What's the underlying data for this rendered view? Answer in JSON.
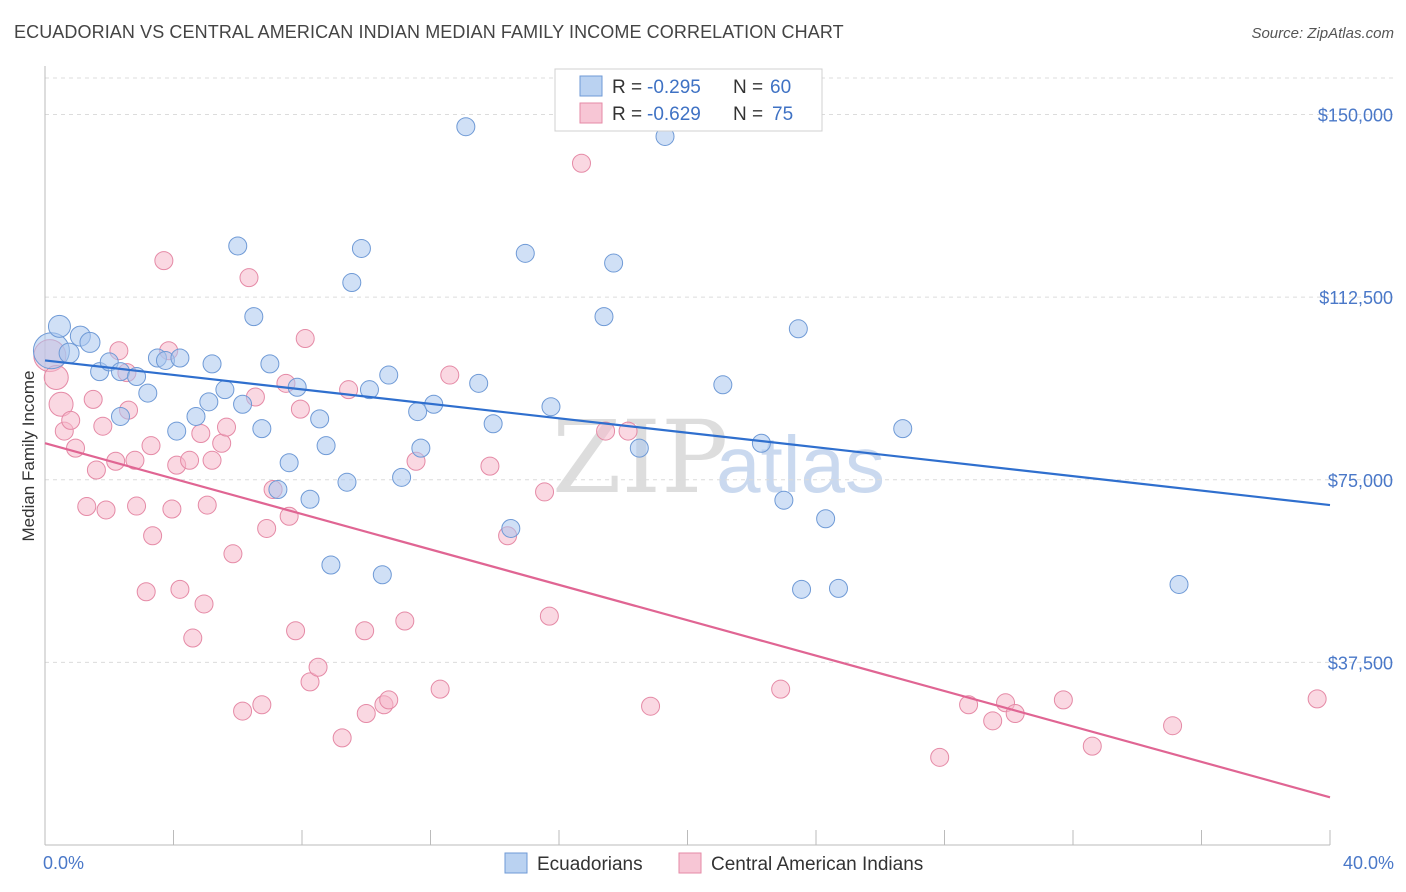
{
  "title": "ECUADORIAN VS CENTRAL AMERICAN INDIAN MEDIAN FAMILY INCOME CORRELATION CHART",
  "source": "Source: ZipAtlas.com",
  "watermark": {
    "part1": "ZIP",
    "part2": "atlas"
  },
  "colors": {
    "blue_fill": "#a9c7ee",
    "blue_stroke": "#6f9ad6",
    "blue_line": "#2f6fce",
    "pink_fill": "#f5b8cb",
    "pink_stroke": "#e58aa6",
    "pink_line": "#e06593",
    "grid": "#dcdcdc",
    "tick_text": "#4a78c8"
  },
  "legend": {
    "rows": [
      {
        "r_label": "R = ",
        "r_value": "-0.295",
        "n_label": "N = ",
        "n_value": "60"
      },
      {
        "r_label": "R = ",
        "r_value": "-0.629",
        "n_label": "N = ",
        "n_value": "75"
      }
    ]
  },
  "chart_data": {
    "type": "scatter",
    "title": "ECUADORIAN VS CENTRAL AMERICAN INDIAN MEDIAN FAMILY INCOME CORRELATION CHART",
    "xlabel": "",
    "ylabel": "Median Family Income",
    "xlim": [
      0,
      40
    ],
    "ylim": [
      0,
      157500
    ],
    "x_tick_labels": [
      "0.0%",
      "40.0%"
    ],
    "y_ticks": [
      {
        "value": 37500,
        "label": "$37,500"
      },
      {
        "value": 75000,
        "label": "$75,000"
      },
      {
        "value": 112500,
        "label": "$112,500"
      },
      {
        "value": 150000,
        "label": "$150,000"
      }
    ],
    "grid": "horizontal dashed",
    "series": [
      {
        "name": "Ecuadorians",
        "color": "blue",
        "r": -0.295,
        "n": 60,
        "trend": {
          "x": [
            0,
            40
          ],
          "y": [
            99500,
            69800
          ]
        },
        "points": [
          [
            0.2,
            101500,
            18
          ],
          [
            0.45,
            106500,
            11
          ],
          [
            0.75,
            101000,
            10
          ],
          [
            1.1,
            104500,
            10
          ],
          [
            1.4,
            103200,
            10
          ],
          [
            1.7,
            97200,
            9
          ],
          [
            2.0,
            99200,
            9
          ],
          [
            2.35,
            97200,
            9
          ],
          [
            2.85,
            96200,
            9
          ],
          [
            3.2,
            92800,
            9
          ],
          [
            2.35,
            88000,
            9
          ],
          [
            3.5,
            100000,
            9
          ],
          [
            3.75,
            99500,
            9
          ],
          [
            4.2,
            100000,
            9
          ],
          [
            4.1,
            85000,
            9
          ],
          [
            4.7,
            88000,
            9
          ],
          [
            5.1,
            91000,
            9
          ],
          [
            5.2,
            98800,
            9
          ],
          [
            5.6,
            93500,
            9
          ],
          [
            6.0,
            123000,
            9
          ],
          [
            6.15,
            90500,
            9
          ],
          [
            6.5,
            108500,
            9
          ],
          [
            6.75,
            85500,
            9
          ],
          [
            7.0,
            98800,
            9
          ],
          [
            7.25,
            73000,
            9
          ],
          [
            7.6,
            78500,
            9
          ],
          [
            7.85,
            94000,
            9
          ],
          [
            8.25,
            71000,
            9
          ],
          [
            8.55,
            87500,
            9
          ],
          [
            8.75,
            82000,
            9
          ],
          [
            8.9,
            57500,
            9
          ],
          [
            9.4,
            74500,
            9
          ],
          [
            9.55,
            115500,
            9
          ],
          [
            9.85,
            122500,
            9
          ],
          [
            10.1,
            93500,
            9
          ],
          [
            10.5,
            55500,
            9
          ],
          [
            10.7,
            96500,
            9
          ],
          [
            11.1,
            75500,
            9
          ],
          [
            11.6,
            89000,
            9
          ],
          [
            12.1,
            90500,
            9
          ],
          [
            13.1,
            147500,
            9
          ],
          [
            13.5,
            94800,
            9
          ],
          [
            13.95,
            86500,
            9
          ],
          [
            14.5,
            65000,
            9
          ],
          [
            14.95,
            121500,
            9
          ],
          [
            15.75,
            90000,
            9
          ],
          [
            17.4,
            108500,
            9
          ],
          [
            17.7,
            119500,
            9
          ],
          [
            18.5,
            81500,
            9
          ],
          [
            11.7,
            81500,
            9
          ],
          [
            21.1,
            94500,
            9
          ],
          [
            22.3,
            82500,
            9
          ],
          [
            23.0,
            70800,
            9
          ],
          [
            23.45,
            106000,
            9
          ],
          [
            23.55,
            52500,
            9
          ],
          [
            24.3,
            67000,
            9
          ],
          [
            24.7,
            52700,
            9
          ],
          [
            26.7,
            85500,
            9
          ],
          [
            35.3,
            53500,
            9
          ],
          [
            19.3,
            145500,
            9
          ]
        ]
      },
      {
        "name": "Central American Indians",
        "color": "pink",
        "r": -0.629,
        "n": 75,
        "trend": {
          "x": [
            0,
            40
          ],
          "y": [
            82500,
            9800
          ]
        },
        "points": [
          [
            0.15,
            100500,
            16
          ],
          [
            0.35,
            96000,
            12
          ],
          [
            0.5,
            90500,
            12
          ],
          [
            0.6,
            85000,
            9
          ],
          [
            0.8,
            87200,
            9
          ],
          [
            0.95,
            81500,
            9
          ],
          [
            1.3,
            69500,
            9
          ],
          [
            1.5,
            91500,
            9
          ],
          [
            1.6,
            77000,
            9
          ],
          [
            1.8,
            86000,
            9
          ],
          [
            1.9,
            68800,
            9
          ],
          [
            2.2,
            78800,
            9
          ],
          [
            2.3,
            101500,
            9
          ],
          [
            2.55,
            97000,
            9
          ],
          [
            2.6,
            89300,
            9
          ],
          [
            2.8,
            79000,
            9
          ],
          [
            2.85,
            69600,
            9
          ],
          [
            3.15,
            52000,
            9
          ],
          [
            3.3,
            82000,
            9
          ],
          [
            3.35,
            63500,
            9
          ],
          [
            3.7,
            120000,
            9
          ],
          [
            3.85,
            101500,
            9
          ],
          [
            3.95,
            69000,
            9
          ],
          [
            4.1,
            78000,
            9
          ],
          [
            4.2,
            52500,
            9
          ],
          [
            4.5,
            79000,
            9
          ],
          [
            4.6,
            42500,
            9
          ],
          [
            4.85,
            84500,
            9
          ],
          [
            4.95,
            49500,
            9
          ],
          [
            5.05,
            69800,
            9
          ],
          [
            5.2,
            79000,
            9
          ],
          [
            5.5,
            82500,
            9
          ],
          [
            5.65,
            85800,
            9
          ],
          [
            5.85,
            59800,
            9
          ],
          [
            6.15,
            27500,
            9
          ],
          [
            6.35,
            116500,
            9
          ],
          [
            6.55,
            92000,
            9
          ],
          [
            6.75,
            28800,
            9
          ],
          [
            6.9,
            65000,
            9
          ],
          [
            7.1,
            73000,
            9
          ],
          [
            7.5,
            94800,
            9
          ],
          [
            7.6,
            67500,
            9
          ],
          [
            7.8,
            44000,
            9
          ],
          [
            7.95,
            89500,
            9
          ],
          [
            8.1,
            104000,
            9
          ],
          [
            8.25,
            33500,
            9
          ],
          [
            8.5,
            36500,
            9
          ],
          [
            9.25,
            22000,
            9
          ],
          [
            9.45,
            93500,
            9
          ],
          [
            9.95,
            44000,
            9
          ],
          [
            10.0,
            27000,
            9
          ],
          [
            10.55,
            28800,
            9
          ],
          [
            10.7,
            29800,
            9
          ],
          [
            11.2,
            46000,
            9
          ],
          [
            11.55,
            78800,
            9
          ],
          [
            12.3,
            32000,
            9
          ],
          [
            12.6,
            96500,
            9
          ],
          [
            13.85,
            77800,
            9
          ],
          [
            14.4,
            63500,
            9
          ],
          [
            15.55,
            72500,
            9
          ],
          [
            15.7,
            47000,
            9
          ],
          [
            17.45,
            85000,
            9
          ],
          [
            18.15,
            85000,
            9
          ],
          [
            18.85,
            28500,
            9
          ],
          [
            22.9,
            32000,
            9
          ],
          [
            27.85,
            18000,
            9
          ],
          [
            28.75,
            28800,
            9
          ],
          [
            29.5,
            25500,
            9
          ],
          [
            29.9,
            29200,
            9
          ],
          [
            30.2,
            27000,
            9
          ],
          [
            31.7,
            29800,
            9
          ],
          [
            32.6,
            20300,
            9
          ],
          [
            35.1,
            24500,
            9
          ],
          [
            39.6,
            30000,
            9
          ],
          [
            16.7,
            140000,
            9
          ]
        ]
      }
    ]
  },
  "bottom_legend": [
    {
      "label": "Ecuadorians",
      "color": "blue"
    },
    {
      "label": "Central American Indians",
      "color": "pink"
    }
  ]
}
